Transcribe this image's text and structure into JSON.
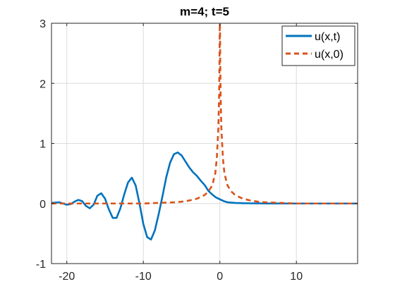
{
  "chart_data": {
    "type": "line",
    "title": "m=4; t=5",
    "xlabel": "",
    "ylabel": "",
    "xlim": [
      -22,
      18
    ],
    "ylim": [
      -1,
      3
    ],
    "xticks": [
      -20,
      -10,
      0,
      10
    ],
    "yticks": [
      -1,
      0,
      1,
      2,
      3
    ],
    "xtick_labels": [
      "-20",
      "-10",
      "0",
      "10"
    ],
    "ytick_labels": [
      "-1",
      "0",
      "1",
      "2",
      "3"
    ],
    "grid": true,
    "legend_position": "top-right",
    "series": [
      {
        "name": "u(x,t)",
        "style": "solid",
        "color": "#0072BD",
        "x": [
          -22,
          -21,
          -20,
          -19.5,
          -19,
          -18.5,
          -18,
          -17.5,
          -17,
          -16.5,
          -16,
          -15.5,
          -15,
          -14.5,
          -14,
          -13.5,
          -13,
          -12.5,
          -12,
          -11.5,
          -11,
          -10.5,
          -10,
          -9.5,
          -9,
          -8.5,
          -8,
          -7.5,
          -7,
          -6.5,
          -6,
          -5.5,
          -5,
          -4.5,
          -4,
          -3.5,
          -3,
          -2.5,
          -2,
          -1.5,
          -1,
          -0.5,
          0,
          0.5,
          1,
          2,
          3,
          4,
          5,
          6,
          8,
          10,
          12,
          14,
          16,
          18
        ],
        "y": [
          0.01,
          0.02,
          -0.02,
          -0.01,
          0.03,
          0.06,
          0.04,
          -0.04,
          -0.08,
          -0.02,
          0.13,
          0.17,
          0.08,
          -0.1,
          -0.24,
          -0.24,
          -0.08,
          0.15,
          0.35,
          0.43,
          0.3,
          0.0,
          -0.34,
          -0.56,
          -0.6,
          -0.45,
          -0.18,
          0.12,
          0.44,
          0.68,
          0.82,
          0.85,
          0.8,
          0.7,
          0.6,
          0.52,
          0.46,
          0.38,
          0.31,
          0.21,
          0.15,
          0.1,
          0.07,
          0.04,
          0.02,
          0.01,
          0.005,
          0.003,
          0.002,
          0.001,
          0.0,
          0.0,
          0.0,
          0.0,
          0.0,
          0.0
        ]
      },
      {
        "name": "u(x,0)",
        "style": "dashed",
        "color": "#D95319",
        "x": [
          -22,
          -18,
          -14,
          -10,
          -8,
          -6,
          -5,
          -4,
          -3,
          -2,
          -1.5,
          -1,
          -0.6,
          -0.4,
          -0.2,
          -0.1,
          -0.05,
          -0.02,
          0,
          0.02,
          0.05,
          0.1,
          0.2,
          0.4,
          0.6,
          1,
          1.5,
          2,
          3,
          4,
          5,
          6,
          8,
          10,
          14,
          18
        ],
        "y": [
          0.0,
          0.0,
          0.0,
          0.0,
          0.01,
          0.02,
          0.03,
          0.05,
          0.08,
          0.14,
          0.2,
          0.3,
          0.5,
          0.75,
          1.25,
          1.8,
          2.35,
          2.9,
          3.0,
          2.9,
          2.35,
          1.8,
          1.25,
          0.75,
          0.5,
          0.3,
          0.2,
          0.14,
          0.08,
          0.05,
          0.03,
          0.02,
          0.01,
          0.0,
          0.0,
          0.0
        ]
      }
    ]
  }
}
